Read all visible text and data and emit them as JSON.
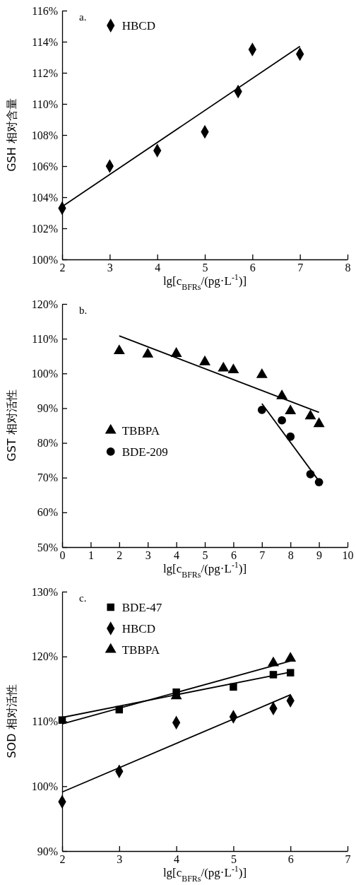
{
  "chart_data": [
    {
      "type": "scatter",
      "title": "a.",
      "xlabel": "lg[c$_{BFRs}$/(pg·L$^{-1}$)]",
      "ylabel": "GSH 相对含量",
      "legend": "top left",
      "xlim": [
        2,
        8
      ],
      "xticks": [
        2,
        3,
        4,
        5,
        6,
        7,
        8
      ],
      "ylim": [
        100,
        116
      ],
      "yticks": [
        {
          "value": 100,
          "label": "100%"
        },
        {
          "value": 102,
          "label": "102%"
        },
        {
          "value": 104,
          "label": "104%"
        },
        {
          "value": 106,
          "label": "106%"
        },
        {
          "value": 108,
          "label": "108%"
        },
        {
          "value": 110,
          "label": "110%"
        },
        {
          "value": 112,
          "label": "112%"
        },
        {
          "value": 114,
          "label": "114%"
        },
        {
          "value": 116,
          "label": "116%"
        }
      ],
      "series": [
        {
          "name": "HBCD",
          "color": "#000000",
          "marker": "diamond",
          "x": [
            2,
            3,
            4,
            5,
            5.7,
            6,
            7
          ],
          "values": [
            103.3,
            106,
            107,
            108.2,
            110.8,
            113.5,
            113.2
          ]
        },
        {
          "type": "line",
          "color": "#000000",
          "marker": "none",
          "x": [
            2,
            7
          ],
          "values": [
            103.4,
            113.7
          ]
        }
      ]
    },
    {
      "type": "scatter",
      "title": "b.",
      "xlabel": "lg[c$_{BFRs}$/(pg·L$^{-1}$)]",
      "ylabel": "GST 相对活性",
      "legend": "left",
      "xlim": [
        0,
        10
      ],
      "xticks": [
        0,
        1,
        2,
        3,
        4,
        5,
        6,
        7,
        8,
        9,
        10
      ],
      "ylim": [
        50,
        120
      ],
      "yticks": [
        {
          "value": 50,
          "label": "50%"
        },
        {
          "value": 60,
          "label": "60%"
        },
        {
          "value": 70,
          "label": "70%"
        },
        {
          "value": 80,
          "label": "80%"
        },
        {
          "value": 90,
          "label": "90%"
        },
        {
          "value": 100,
          "label": "100%"
        },
        {
          "value": 110,
          "label": "110%"
        },
        {
          "value": 120,
          "label": "120%"
        }
      ],
      "series": [
        {
          "name": "TBBPA",
          "color": "#000000",
          "marker": "triangle",
          "x": [
            2,
            3,
            4,
            5,
            5.65,
            6,
            7,
            7.7,
            8,
            8.7,
            9
          ],
          "values": [
            106.5,
            105.5,
            105.7,
            103.3,
            101.5,
            101,
            99.6,
            93.5,
            89.2,
            87.7,
            85.5
          ]
        },
        {
          "name": "BDE-209",
          "color": "#000000",
          "marker": "circle",
          "x": [
            7,
            7.7,
            8,
            8.7,
            9
          ],
          "values": [
            89.5,
            86.5,
            81.8,
            71,
            68.7
          ]
        },
        {
          "type": "line",
          "color": "#000000",
          "marker": "none",
          "x": [
            2,
            9
          ],
          "values": [
            110.8,
            88.8
          ]
        },
        {
          "type": "line",
          "color": "#000000",
          "marker": "none",
          "x": [
            7,
            9
          ],
          "values": [
            91.3,
            69
          ]
        }
      ]
    },
    {
      "type": "scatter",
      "title": "c.",
      "xlabel": "lg[c$_{BFRs}$/(pg·L$^{-1}$)]",
      "ylabel": "SOD 相对活性",
      "legend": "top left",
      "xlim": [
        2,
        7
      ],
      "xticks": [
        2,
        3,
        4,
        5,
        6,
        7
      ],
      "ylim": [
        90,
        130
      ],
      "yticks": [
        {
          "value": 90,
          "label": "90%"
        },
        {
          "value": 100,
          "label": "100%"
        },
        {
          "value": 110,
          "label": "110%"
        },
        {
          "value": 120,
          "label": "120%"
        },
        {
          "value": 130,
          "label": "130%"
        }
      ],
      "series": [
        {
          "name": "BDE-47",
          "color": "#000000",
          "marker": "square",
          "x": [
            2,
            3,
            4,
            5,
            5.7,
            6
          ],
          "values": [
            110.2,
            111.8,
            114.5,
            115.3,
            117.2,
            117.5
          ]
        },
        {
          "name": "HBCD",
          "color": "#000000",
          "marker": "diamond",
          "x": [
            2,
            3,
            4,
            5,
            5.7,
            6
          ],
          "values": [
            97.6,
            102.3,
            109.8,
            110.7,
            112,
            113.2
          ]
        },
        {
          "name": "TBBPA",
          "color": "#000000",
          "marker": "triangle",
          "x": [
            4,
            5.7,
            6
          ],
          "values": [
            113.9,
            119,
            119.7
          ]
        },
        {
          "type": "line",
          "color": "#000000",
          "marker": "none",
          "x": [
            2,
            6
          ],
          "values": [
            110.6,
            117.6
          ]
        },
        {
          "type": "line",
          "color": "#000000",
          "marker": "none",
          "x": [
            2,
            6
          ],
          "values": [
            99.1,
            114.1
          ]
        },
        {
          "type": "line",
          "color": "#000000",
          "marker": "none",
          "x": [
            2,
            6
          ],
          "values": [
            109.6,
            119.3
          ]
        }
      ]
    }
  ]
}
